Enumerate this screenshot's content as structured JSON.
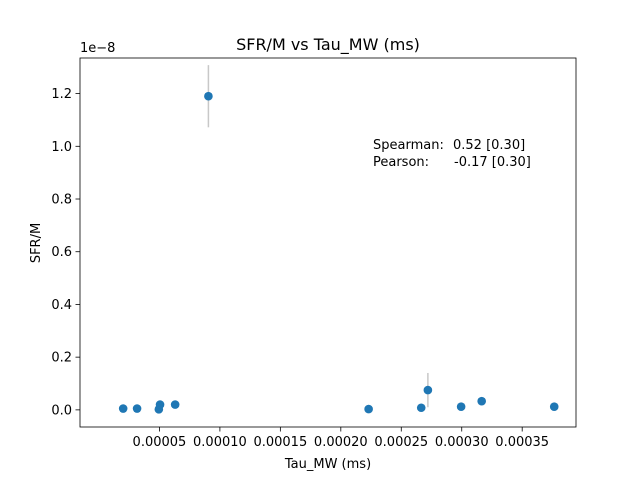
{
  "chart_data": {
    "type": "scatter",
    "title": "SFR/M vs Tau_MW (ms)",
    "xlabel": "Tau_MW (ms)",
    "ylabel": "SFR/M",
    "offset_text": "1e−8",
    "y_scale_exponent": -8,
    "xlim": [
      -1.57e-05,
      0.0003945
    ],
    "ylim": [
      -6.5e-10,
      1.335e-08
    ],
    "x_ticks": [
      5e-05,
      0.0001,
      0.00015,
      0.0002,
      0.00025,
      0.0003,
      0.00035
    ],
    "x_tick_labels": [
      "0.00005",
      "0.00010",
      "0.00015",
      "0.00020",
      "0.00025",
      "0.00030",
      "0.00035"
    ],
    "y_ticks": [
      0.0,
      2e-09,
      4e-09,
      6e-09,
      8e-09,
      1e-08,
      1.2e-08
    ],
    "y_tick_labels": [
      "0.0",
      "0.2",
      "0.4",
      "0.6",
      "0.8",
      "1.0",
      "1.2"
    ],
    "grid": false,
    "marker_color": "#1f77b4",
    "errorbar_color": "#c8c8c8",
    "points": [
      {
        "x": 2e-05,
        "y": 5e-11,
        "yerr": 0.0
      },
      {
        "x": 3.15e-05,
        "y": 5e-11,
        "yerr": 0.0
      },
      {
        "x": 4.95e-05,
        "y": 2e-11,
        "yerr": 0.0
      },
      {
        "x": 5.05e-05,
        "y": 2e-10,
        "yerr": 0.0
      },
      {
        "x": 6.3e-05,
        "y": 2e-10,
        "yerr": 0.0
      },
      {
        "x": 9.05e-05,
        "y": 1.19e-08,
        "yerr": 1.18e-09
      },
      {
        "x": 0.000223,
        "y": 3e-11,
        "yerr": 0.0
      },
      {
        "x": 0.0002665,
        "y": 8e-11,
        "yerr": 0.0
      },
      {
        "x": 0.000272,
        "y": 7.5e-10,
        "yerr": 6.5e-10
      },
      {
        "x": 0.0002995,
        "y": 1.2e-10,
        "yerr": 0.0
      },
      {
        "x": 0.0003165,
        "y": 3.3e-10,
        "yerr": 1e-10
      },
      {
        "x": 0.0003765,
        "y": 1.2e-10,
        "yerr": 0.0
      }
    ],
    "annotations": [
      {
        "label": "Spearman:",
        "value": "0.52 [0.30]"
      },
      {
        "label": "Pearson:",
        "value": "-0.17 [0.30]"
      }
    ]
  }
}
